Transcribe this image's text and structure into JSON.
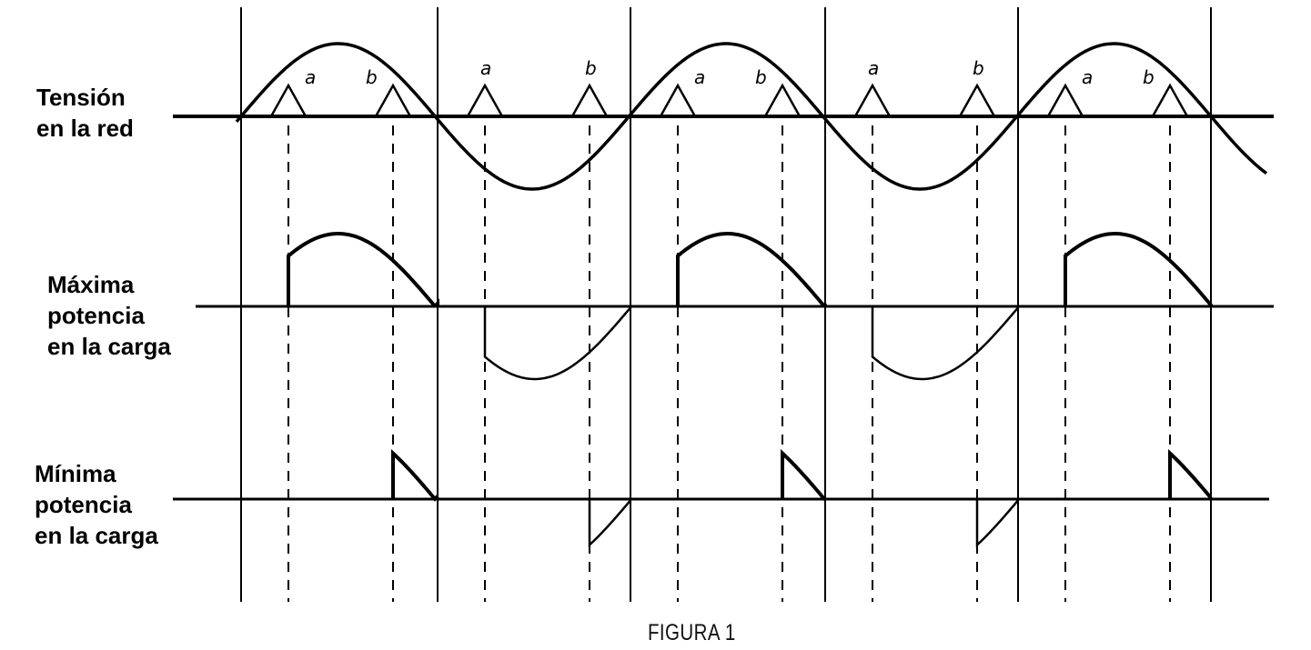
{
  "rows": [
    {
      "label": "Tensión\nen la red"
    },
    {
      "label": "Máxima\npotencia\nen la carga"
    },
    {
      "label": "Mínima\npotencia\nen la carga"
    }
  ],
  "pulse_labels": {
    "a": "a",
    "b": "b"
  },
  "caption": "FIGURA 1",
  "colors": {
    "line": "#000000",
    "background": "#ffffff"
  }
}
